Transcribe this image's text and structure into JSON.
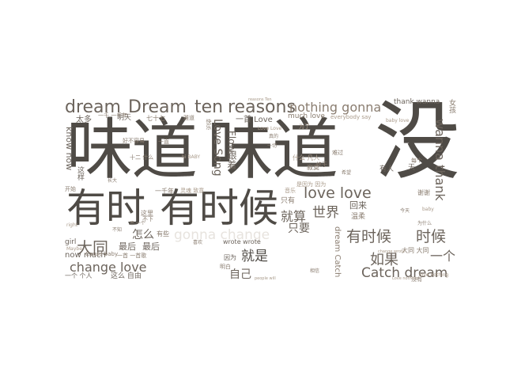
{
  "wordcloud": {
    "words": [
      {
        "t": "味道",
        "k": "w-weidao-1"
      },
      {
        "t": "味道",
        "k": "w-weidao-2"
      },
      {
        "t": "没",
        "k": "w-mei"
      },
      {
        "t": "有时",
        "k": "w-youshi"
      },
      {
        "t": "有时候",
        "k": "w-youshihou-1"
      },
      {
        "t": "dream",
        "k": "w-dream-1"
      },
      {
        "t": "Dream",
        "k": "w-dream-2"
      },
      {
        "t": "ten",
        "k": "w-ten"
      },
      {
        "t": "reasons",
        "k": "w-reasons"
      },
      {
        "t": "nothing gonna",
        "k": "w-nothing-gonna"
      },
      {
        "t": "thank wanna",
        "k": "w-thank-wanna"
      },
      {
        "t": "love love",
        "k": "w-love-love"
      },
      {
        "t": "世界",
        "k": "w-shijie"
      },
      {
        "t": "就算",
        "k": "w-jiusuan"
      },
      {
        "t": "只要",
        "k": "w-zhiyao"
      },
      {
        "t": "有时候",
        "k": "w-youshihou-2"
      },
      {
        "t": "时候",
        "k": "w-shihou"
      },
      {
        "t": "如果",
        "k": "w-ruguo"
      },
      {
        "t": "一个",
        "k": "w-yige"
      },
      {
        "t": "Catch dream",
        "k": "w-catch-dream"
      },
      {
        "t": "大同",
        "k": "w-datong"
      },
      {
        "t": "怎么",
        "k": "w-zenme"
      },
      {
        "t": "change love",
        "k": "w-change-love"
      },
      {
        "t": "gonna change",
        "k": "w-gonna-change"
      },
      {
        "t": "就是",
        "k": "w-jiushi"
      },
      {
        "t": "自己",
        "k": "w-ziji"
      },
      {
        "t": "Love Song",
        "k": "w-love-song"
      },
      {
        "t": "wanna thank",
        "k": "w-wanna-thank"
      },
      {
        "t": "know now",
        "k": "w-know-now"
      },
      {
        "t": "now much",
        "k": "w-now-much"
      },
      {
        "t": "最后",
        "k": "w-zuihou-1"
      },
      {
        "t": "最后",
        "k": "w-zuihou-2"
      },
      {
        "t": "girl",
        "k": "w-girl"
      },
      {
        "t": "一首 Love",
        "k": "w-yishou-love"
      },
      {
        "t": "much love",
        "k": "w-much-love"
      },
      {
        "t": "只有",
        "k": "w-zhiyou"
      },
      {
        "t": "回来",
        "k": "w-huilai"
      },
      {
        "t": "温柔",
        "k": "w-wenrou"
      },
      {
        "t": "有人",
        "k": "w-youren"
      },
      {
        "t": "因为",
        "k": "w-yinwei"
      },
      {
        "t": "太多",
        "k": "w-taiduo"
      },
      {
        "t": "明天",
        "k": "w-mingtian"
      },
      {
        "t": "这里",
        "k": "w-zheli"
      },
      {
        "t": "有些",
        "k": "w-youxie"
      },
      {
        "t": "这么 自由",
        "k": "w-zheme-ziyou"
      },
      {
        "t": "一个 个人",
        "k": "w-yige-geren"
      },
      {
        "t": "wrote wrote",
        "k": "w-wrote-wrote"
      },
      {
        "t": "跟着",
        "k": "w-genzhe"
      },
      {
        "t": "Flow",
        "k": "w-flow"
      },
      {
        "t": "dream Catch",
        "k": "w-dream-catch"
      },
      {
        "t": "大同 大同",
        "k": "w-datong-datong"
      },
      {
        "t": "一首 一首歌",
        "k": "w-yishou-yishouge"
      },
      {
        "t": "Cause baby",
        "k": "w-cause-baby"
      },
      {
        "t": "一千年",
        "k": "w-yiqiannian"
      },
      {
        "t": "什么 凡人",
        "k": "w-shenme-fanren"
      },
      {
        "t": "是因为 因为",
        "k": "w-shiyinwei"
      },
      {
        "t": "everybody say",
        "k": "w-everybody-say"
      },
      {
        "t": "为了",
        "k": "w-weile"
      },
      {
        "t": "谢谢",
        "k": "w-xiexie"
      },
      {
        "t": "每个",
        "k": "w-meige"
      },
      {
        "t": "love nothing",
        "k": "w-love-nothing"
      },
      {
        "t": "不下",
        "k": "w-buxia"
      },
      {
        "t": "好不容易",
        "k": "w-haoburongyi"
      },
      {
        "t": "雅道",
        "k": "w-yadao"
      },
      {
        "t": "快乐",
        "k": "w-kuaile"
      },
      {
        "t": "难过",
        "k": "w-nanguo"
      },
      {
        "t": "终于",
        "k": "w-zhongyu"
      },
      {
        "t": "这样",
        "k": "w-zheyang"
      },
      {
        "t": "开始",
        "k": "w-kaishi"
      },
      {
        "t": "灵魂 致意",
        "k": "w-linghun-zhiyi"
      },
      {
        "t": "寂寞",
        "k": "w-jimo"
      },
      {
        "t": "音乐",
        "k": "w-yinyue"
      },
      {
        "t": "明白",
        "k": "w-mingbai"
      },
      {
        "t": "天",
        "k": "w-tian"
      },
      {
        "t": "女孩",
        "k": "w-nvhai"
      },
      {
        "t": "baby love",
        "k": "w-baby-love"
      },
      {
        "t": "Maybe",
        "k": "w-maybe"
      },
      {
        "t": "一千 一千年",
        "k": "w-yiqian-yiqiannian"
      },
      {
        "t": "七十七",
        "k": "w-qishiqi"
      },
      {
        "t": "十二 什么",
        "k": "w-shier-shenme"
      },
      {
        "t": "一直",
        "k": "w-yizhi"
      },
      {
        "t": "没有",
        "k": "w-meiyou"
      },
      {
        "t": "Love Love",
        "k": "w-love-love-small"
      },
      {
        "t": "reasons Ten",
        "k": "w-reasons-ten"
      },
      {
        "t": "change wrote",
        "k": "w-change-wrote"
      },
      {
        "t": "people will",
        "k": "w-people-will"
      },
      {
        "t": "不 一个",
        "k": "w-bu-yige"
      },
      {
        "t": "hi BABY",
        "k": "w-hi-baby"
      },
      {
        "t": "真的",
        "k": "w-zhende"
      },
      {
        "t": "一切",
        "k": "w-yiqie"
      },
      {
        "t": "希望",
        "k": "w-xiwang"
      },
      {
        "t": "长大",
        "k": "w-zhangda"
      },
      {
        "t": "不知",
        "k": "w-buzhi"
      },
      {
        "t": "喜欢",
        "k": "w-xihuan"
      },
      {
        "t": "为什么",
        "k": "w-weishenme"
      },
      {
        "t": "right",
        "k": "w-right"
      },
      {
        "t": "baby",
        "k": "w-baby-small"
      },
      {
        "t": "今天",
        "k": "w-jintian"
      },
      {
        "t": "相信",
        "k": "w-xiangxin"
      },
      {
        "t": "Love nothing",
        "k": "w-love-nothing-2"
      }
    ]
  }
}
